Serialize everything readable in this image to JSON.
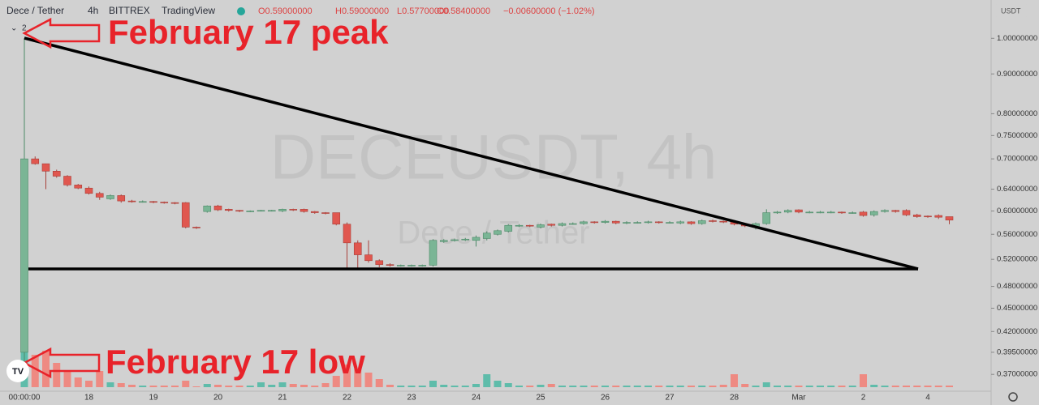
{
  "chart_data": {
    "type": "candlestick",
    "title": "Dece / Tether",
    "interval": "4h",
    "exchange": "BITTREX",
    "source": "TradingView",
    "ohlc_legend": [
      "O0.59000000",
      "H0.59000000",
      "L0.57700000",
      "C0.58400000",
      "−0.00600000 (−1.02%)"
    ],
    "collapsed_count": "2",
    "watermark": "DECEUSDT, 4h",
    "currency": "USDT",
    "annotations": [
      "February 17 peak",
      "February 17 low"
    ],
    "up_color": "#7ab595",
    "down_color": "#e0574f",
    "volume_up_color": "#5fbcaa",
    "volume_down_color": "#ee8a82",
    "log_scale": true,
    "grid": false,
    "ylim": [
      0.352,
      1.12
    ],
    "yticks": [
      {
        "value": 1.0,
        "label": "1.00000000"
      },
      {
        "value": 0.9,
        "label": "0.90000000"
      },
      {
        "value": 0.8,
        "label": "0.80000000"
      },
      {
        "value": 0.75,
        "label": "0.75000000"
      },
      {
        "value": 0.7,
        "label": "0.70000000"
      },
      {
        "value": 0.64,
        "label": "0.64000000"
      },
      {
        "value": 0.6,
        "label": "0.60000000"
      },
      {
        "value": 0.56,
        "label": "0.56000000"
      },
      {
        "value": 0.52,
        "label": "0.52000000"
      },
      {
        "value": 0.48,
        "label": "0.48000000"
      },
      {
        "value": 0.45,
        "label": "0.45000000"
      },
      {
        "value": 0.42,
        "label": "0.42000000"
      },
      {
        "value": 0.395,
        "label": "0.39500000"
      },
      {
        "value": 0.37,
        "label": "0.37000000"
      }
    ],
    "categories": [
      "00:00:00",
      null,
      null,
      null,
      null,
      null,
      "18",
      null,
      null,
      null,
      null,
      null,
      "19",
      null,
      null,
      null,
      null,
      null,
      "20",
      null,
      null,
      null,
      null,
      null,
      "21",
      null,
      null,
      null,
      null,
      null,
      "22",
      null,
      null,
      null,
      null,
      null,
      "23",
      null,
      null,
      null,
      null,
      null,
      "24",
      null,
      null,
      null,
      null,
      null,
      "25",
      null,
      null,
      null,
      null,
      null,
      "26",
      null,
      null,
      null,
      null,
      null,
      "27",
      null,
      null,
      null,
      null,
      null,
      "28",
      null,
      null,
      null,
      null,
      null,
      "Mar",
      null,
      null,
      null,
      null,
      null,
      "2",
      null,
      null,
      null,
      null,
      null,
      "4",
      null,
      null
    ],
    "open": [
      0.395,
      0.7,
      0.69,
      0.675,
      0.665,
      0.648,
      0.642,
      0.632,
      0.622,
      0.628,
      0.618,
      0.617,
      0.617,
      0.616,
      0.615,
      0.615,
      0.572,
      0.599,
      0.609,
      0.603,
      0.601,
      0.6,
      0.6,
      0.601,
      0.6,
      0.603,
      0.603,
      0.599,
      0.597,
      0.597,
      0.577,
      0.546,
      0.527,
      0.518,
      0.512,
      0.511,
      0.511,
      0.511,
      0.511,
      0.548,
      0.55,
      0.551,
      0.55,
      0.553,
      0.56,
      0.565,
      0.574,
      0.575,
      0.572,
      0.577,
      0.575,
      0.578,
      0.578,
      0.581,
      0.58,
      0.582,
      0.579,
      0.58,
      0.58,
      0.581,
      0.58,
      0.579,
      0.581,
      0.578,
      0.583,
      0.582,
      0.582,
      0.577,
      0.572,
      0.578,
      0.597,
      0.598,
      0.602,
      0.598,
      0.598,
      0.598,
      0.598,
      0.597,
      0.598,
      0.593,
      0.599,
      0.601,
      0.601,
      0.593,
      0.591,
      0.592,
      0.59
    ],
    "high": [
      1.0,
      0.705,
      0.69,
      0.678,
      0.667,
      0.65,
      0.645,
      0.635,
      0.63,
      0.63,
      0.62,
      0.619,
      0.618,
      0.617,
      0.616,
      0.616,
      0.573,
      0.61,
      0.611,
      0.604,
      0.602,
      0.601,
      0.602,
      0.602,
      0.604,
      0.604,
      0.604,
      0.6,
      0.598,
      0.59,
      0.58,
      0.55,
      0.55,
      0.52,
      0.514,
      0.512,
      0.512,
      0.512,
      0.552,
      0.552,
      0.553,
      0.554,
      0.558,
      0.565,
      0.568,
      0.577,
      0.577,
      0.576,
      0.578,
      0.578,
      0.58,
      0.58,
      0.583,
      0.582,
      0.584,
      0.583,
      0.582,
      0.582,
      0.583,
      0.582,
      0.582,
      0.583,
      0.582,
      0.585,
      0.585,
      0.583,
      0.583,
      0.578,
      0.58,
      0.603,
      0.6,
      0.603,
      0.603,
      0.6,
      0.6,
      0.6,
      0.599,
      0.599,
      0.6,
      0.601,
      0.603,
      0.602,
      0.603,
      0.595,
      0.592,
      0.594,
      0.59
    ],
    "low": [
      0.365,
      0.688,
      0.64,
      0.662,
      0.645,
      0.64,
      0.63,
      0.62,
      0.62,
      0.615,
      0.615,
      0.615,
      0.614,
      0.613,
      0.612,
      0.57,
      0.569,
      0.597,
      0.6,
      0.599,
      0.598,
      0.598,
      0.599,
      0.599,
      0.598,
      0.6,
      0.597,
      0.595,
      0.594,
      0.575,
      0.505,
      0.505,
      0.515,
      0.508,
      0.509,
      0.509,
      0.509,
      0.509,
      0.509,
      0.546,
      0.548,
      0.549,
      0.54,
      0.55,
      0.558,
      0.563,
      0.572,
      0.572,
      0.57,
      0.573,
      0.573,
      0.576,
      0.576,
      0.578,
      0.578,
      0.577,
      0.577,
      0.578,
      0.578,
      0.578,
      0.578,
      0.577,
      0.576,
      0.576,
      0.58,
      0.579,
      0.575,
      0.572,
      0.568,
      0.576,
      0.595,
      0.596,
      0.596,
      0.596,
      0.596,
      0.596,
      0.595,
      0.595,
      0.59,
      0.59,
      0.597,
      0.597,
      0.591,
      0.588,
      0.588,
      0.586,
      0.577
    ],
    "close": [
      0.7,
      0.69,
      0.675,
      0.665,
      0.648,
      0.642,
      0.632,
      0.625,
      0.628,
      0.618,
      0.617,
      0.617,
      0.616,
      0.615,
      0.614,
      0.572,
      0.571,
      0.609,
      0.602,
      0.601,
      0.6,
      0.6,
      0.601,
      0.601,
      0.603,
      0.602,
      0.599,
      0.597,
      0.596,
      0.577,
      0.546,
      0.527,
      0.518,
      0.512,
      0.511,
      0.511,
      0.511,
      0.511,
      0.55,
      0.55,
      0.551,
      0.552,
      0.555,
      0.562,
      0.566,
      0.575,
      0.575,
      0.574,
      0.576,
      0.575,
      0.578,
      0.578,
      0.581,
      0.58,
      0.582,
      0.579,
      0.58,
      0.58,
      0.581,
      0.58,
      0.58,
      0.581,
      0.578,
      0.583,
      0.582,
      0.581,
      0.577,
      0.574,
      0.578,
      0.597,
      0.598,
      0.601,
      0.598,
      0.598,
      0.598,
      0.598,
      0.597,
      0.597,
      0.592,
      0.599,
      0.601,
      0.599,
      0.593,
      0.59,
      0.59,
      0.589,
      0.584
    ],
    "volume": [
      50,
      40,
      45,
      30,
      20,
      12,
      8,
      20,
      6,
      5,
      3,
      2,
      2,
      2,
      2,
      8,
      1,
      4,
      3,
      2,
      2,
      2,
      6,
      3,
      6,
      4,
      3,
      2,
      5,
      14,
      28,
      22,
      18,
      10,
      3,
      2,
      2,
      2,
      8,
      3,
      2,
      2,
      4,
      16,
      8,
      5,
      2,
      2,
      3,
      4,
      2,
      2,
      2,
      2,
      2,
      2,
      2,
      2,
      2,
      2,
      2,
      2,
      2,
      2,
      2,
      3,
      16,
      4,
      2,
      6,
      2,
      2,
      2,
      2,
      2,
      2,
      2,
      2,
      16,
      3,
      2,
      2,
      2,
      2,
      2,
      2,
      2
    ]
  }
}
